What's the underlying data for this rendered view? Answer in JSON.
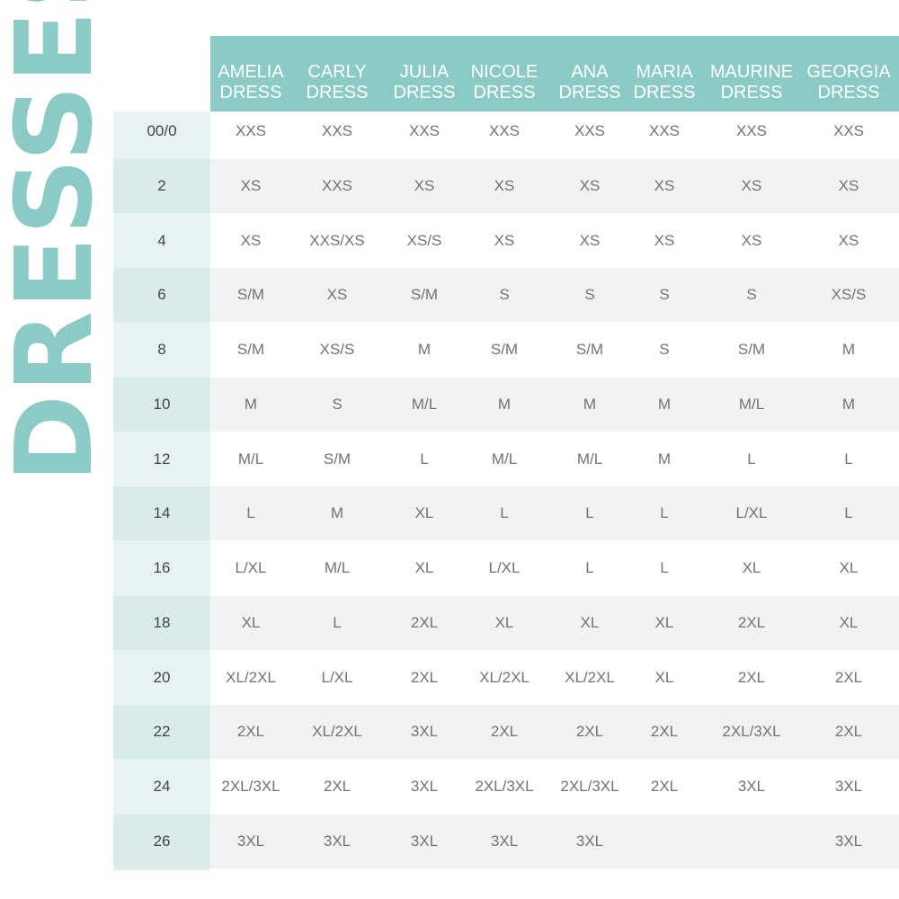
{
  "title": "DRESSES",
  "columns": [
    {
      "line1": "AMELIA",
      "line2": "DRESS"
    },
    {
      "line1": "CARLY",
      "line2": "DRESS"
    },
    {
      "line1": "JULIA",
      "line2": "DRESS"
    },
    {
      "line1": "NICOLE",
      "line2": "DRESS"
    },
    {
      "line1": "ANA",
      "line2": "DRESS"
    },
    {
      "line1": "MARIA",
      "line2": "DRESS"
    },
    {
      "line1": "MAURINE",
      "line2": "DRESS"
    },
    {
      "line1": "GEORGIA",
      "line2": "DRESS"
    }
  ],
  "rows": [
    {
      "size": "00/0",
      "values": [
        "XXS",
        "XXS",
        "XXS",
        "XXS",
        "XXS",
        "XXS",
        "XXS",
        "XXS"
      ]
    },
    {
      "size": "2",
      "values": [
        "XS",
        "XXS",
        "XS",
        "XS",
        "XS",
        "XS",
        "XS",
        "XS"
      ]
    },
    {
      "size": "4",
      "values": [
        "XS",
        "XXS/XS",
        "XS/S",
        "XS",
        "XS",
        "XS",
        "XS",
        "XS"
      ]
    },
    {
      "size": "6",
      "values": [
        "S/M",
        "XS",
        "S/M",
        "S",
        "S",
        "S",
        "S",
        "XS/S"
      ]
    },
    {
      "size": "8",
      "values": [
        "S/M",
        "XS/S",
        "M",
        "S/M",
        "S/M",
        "S",
        "S/M",
        "M"
      ]
    },
    {
      "size": "10",
      "values": [
        "M",
        "S",
        "M/L",
        "M",
        "M",
        "M",
        "M/L",
        "M"
      ]
    },
    {
      "size": "12",
      "values": [
        "M/L",
        "S/M",
        "L",
        "M/L",
        "M/L",
        "M",
        "L",
        "L"
      ]
    },
    {
      "size": "14",
      "values": [
        "L",
        "M",
        "XL",
        "L",
        "L",
        "L",
        "L/XL",
        "L"
      ]
    },
    {
      "size": "16",
      "values": [
        "L/XL",
        "M/L",
        "XL",
        "L/XL",
        "L",
        "L",
        "XL",
        "XL"
      ]
    },
    {
      "size": "18",
      "values": [
        "XL",
        "L",
        "2XL",
        "XL",
        "XL",
        "XL",
        "2XL",
        "XL"
      ]
    },
    {
      "size": "20",
      "values": [
        "XL/2XL",
        "L/XL",
        "2XL",
        "XL/2XL",
        "XL/2XL",
        "XL",
        "2XL",
        "2XL"
      ]
    },
    {
      "size": "22",
      "values": [
        "2XL",
        "XL/2XL",
        "3XL",
        "2XL",
        "2XL",
        "2XL",
        "2XL/3XL",
        "2XL"
      ]
    },
    {
      "size": "24",
      "values": [
        "2XL/3XL",
        "2XL",
        "3XL",
        "2XL/3XL",
        "2XL/3XL",
        "2XL",
        "3XL",
        "3XL"
      ]
    },
    {
      "size": "26",
      "values": [
        "3XL",
        "3XL",
        "3XL",
        "3XL",
        "3XL",
        "",
        "",
        "3XL"
      ]
    }
  ]
}
